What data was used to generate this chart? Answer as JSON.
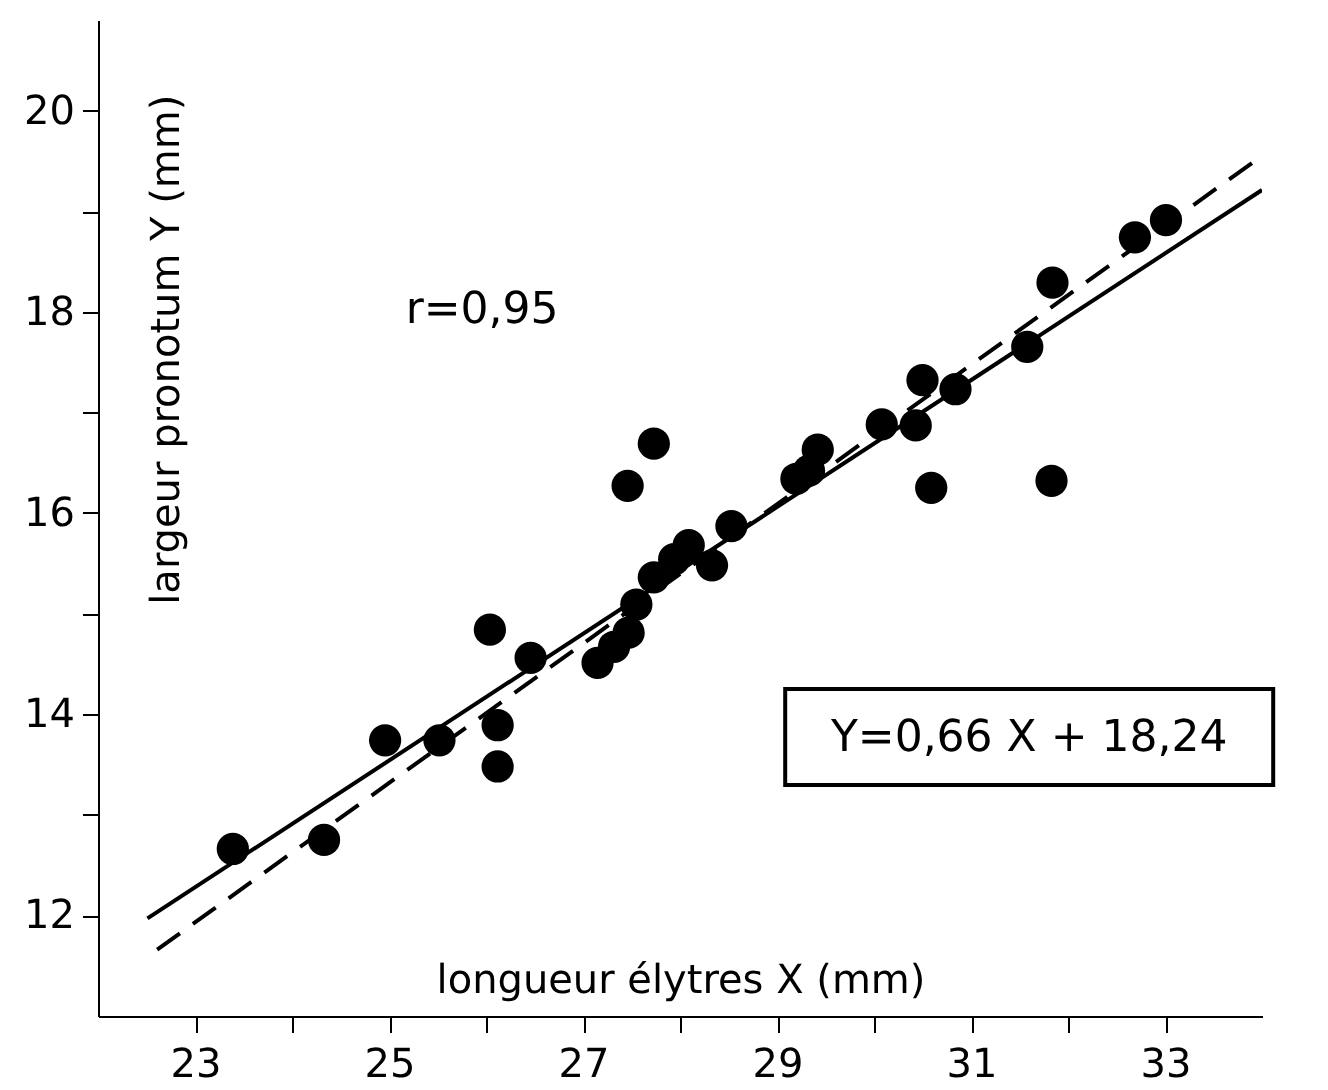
{
  "chart_data": {
    "type": "scatter",
    "xlabel": "longueur élytres X (mm)",
    "ylabel": "largeur pronotum Y (mm)",
    "series": [
      {
        "color": "#000000",
        "marker": "circle",
        "x": [
          23.39,
          24.33,
          24.96,
          25.52,
          26.04,
          26.12,
          26.12,
          26.46,
          27.15,
          27.32,
          27.47,
          27.46,
          27.55,
          27.73,
          27.73,
          27.94,
          28.09,
          28.33,
          28.53,
          29.2,
          29.33,
          29.42,
          30.08,
          30.43,
          30.5,
          30.59,
          30.84,
          31.58,
          31.84,
          31.83,
          32.69,
          33.01
        ],
        "values": [
          12.66,
          12.75,
          13.74,
          13.74,
          14.84,
          13.89,
          13.48,
          14.56,
          14.51,
          14.67,
          14.81,
          16.27,
          15.09,
          15.36,
          16.69,
          15.54,
          15.68,
          15.48,
          15.87,
          16.34,
          16.42,
          16.63,
          16.88,
          16.87,
          17.32,
          16.25,
          17.23,
          17.65,
          18.29,
          16.32,
          18.74,
          18.91
        ]
      },
      {
        "type": "line",
        "color": "#000000",
        "line_style": "solid",
        "marker": "none",
        "x": [
          22.51,
          34.0
        ],
        "values": [
          11.97,
          19.21
        ]
      },
      {
        "type": "line",
        "color": "#000000",
        "line_style": "dashed",
        "marker": "none",
        "x": [
          22.61,
          34.0
        ],
        "values": [
          11.66,
          19.55
        ]
      }
    ],
    "annotations": [
      "r=0,95",
      "Y=0,66 X + 18,24"
    ],
    "xlim": [
      22,
      34
    ],
    "ylim": [
      11,
      20.9
    ],
    "xticks": [
      23,
      {
        "value": 24,
        "label": null
      },
      25,
      {
        "value": 26,
        "label": null
      },
      27,
      {
        "value": 28,
        "label": null
      },
      29,
      {
        "value": 30,
        "label": null
      },
      31,
      {
        "value": 32,
        "label": null
      },
      33
    ],
    "yticks": [
      12,
      {
        "value": 13,
        "label": null
      },
      14,
      {
        "value": 15,
        "label": null
      },
      16,
      {
        "value": 17,
        "label": null
      },
      18,
      {
        "value": 19,
        "label": null
      },
      20
    ],
    "grid": false
  }
}
